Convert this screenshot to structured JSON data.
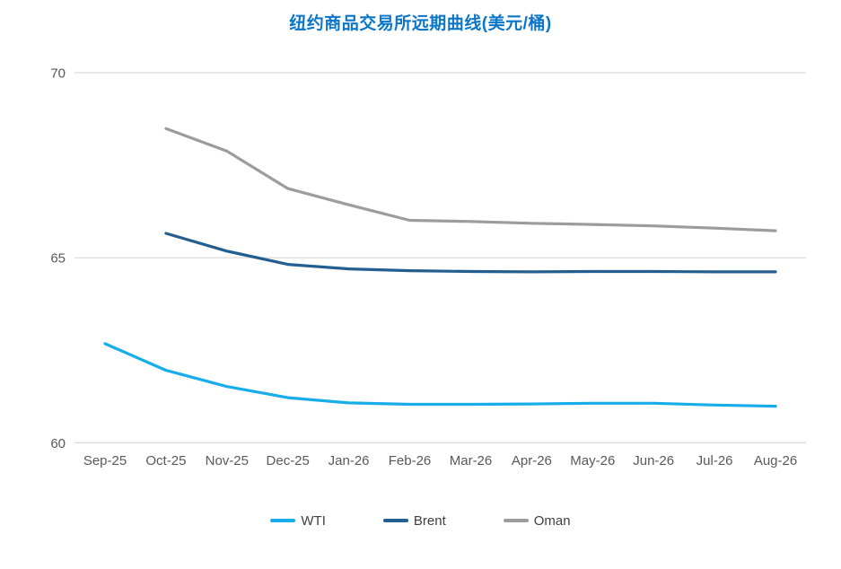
{
  "chart_data": {
    "type": "line",
    "title": "纽约商品交易所远期曲线(美元/桶)",
    "categories": [
      "Sep-25",
      "Oct-25",
      "Nov-25",
      "Dec-25",
      "Jan-26",
      "Feb-26",
      "Mar-26",
      "Apr-26",
      "May-26",
      "Jun-26",
      "Jul-26",
      "Aug-26"
    ],
    "series": [
      {
        "name": "WTI",
        "color": "#16ADE8",
        "values": [
          62.68,
          61.96,
          61.52,
          61.22,
          61.08,
          61.04,
          61.04,
          61.05,
          61.07,
          61.07,
          61.02,
          60.99
        ]
      },
      {
        "name": "Brent",
        "color": "#235E90",
        "values": [
          null,
          65.66,
          65.18,
          64.82,
          64.7,
          64.65,
          64.63,
          64.62,
          64.63,
          64.63,
          64.62,
          64.62
        ]
      },
      {
        "name": "Oman",
        "color": "#9C9C9C",
        "values": [
          null,
          68.49,
          67.88,
          66.87,
          66.43,
          66.01,
          65.98,
          65.93,
          65.9,
          65.86,
          65.8,
          65.73
        ]
      }
    ],
    "ylim": [
      60,
      70
    ],
    "yticks": [
      60,
      65,
      70
    ],
    "xlabel": "",
    "ylabel": "",
    "grid": "horizontal-only",
    "legend_position": "bottom"
  },
  "colors": {
    "title": "#0B76C9",
    "axis_label": "#595959",
    "gridline": "#D9D9D9",
    "legend_text": "#404040",
    "background": "#FFFFFF"
  }
}
